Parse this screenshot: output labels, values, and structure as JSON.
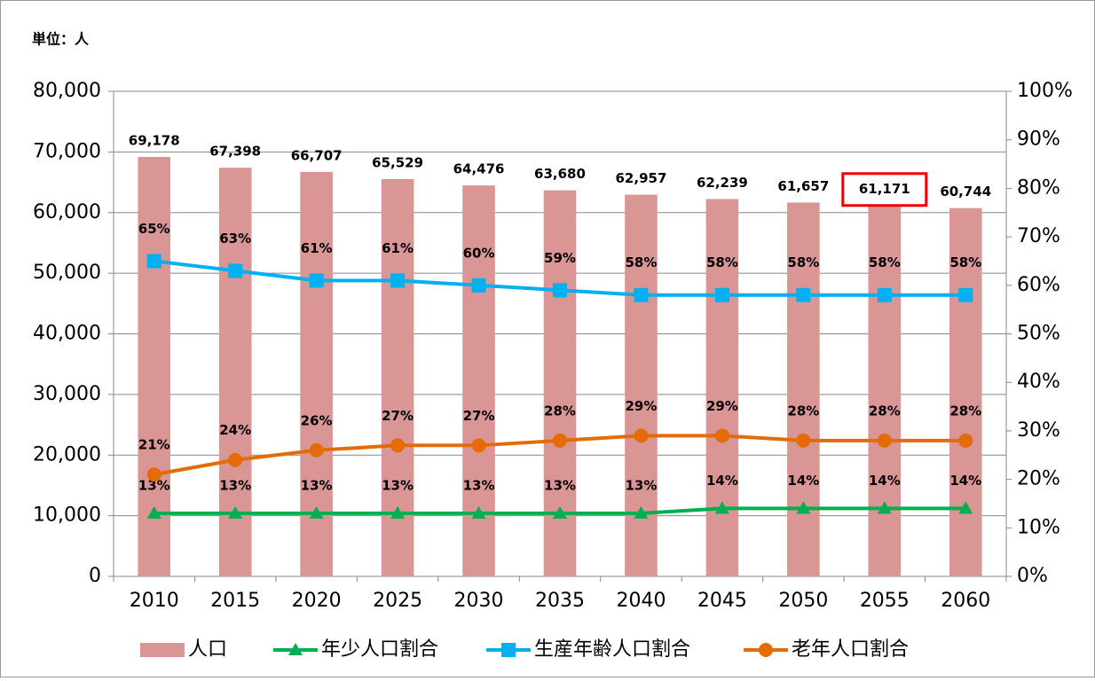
{
  "chart_data": {
    "type": "bar",
    "unit_label": "単位：人",
    "categories": [
      "2010",
      "2015",
      "2020",
      "2025",
      "2030",
      "2035",
      "2040",
      "2045",
      "2050",
      "2055",
      "2060"
    ],
    "series": [
      {
        "name": "人口",
        "type": "bar",
        "color": "#d99694",
        "values": [
          69178,
          67398,
          66707,
          65529,
          64476,
          63680,
          62957,
          62239,
          61657,
          61171,
          60744
        ],
        "value_labels": [
          "69,178",
          "67,398",
          "66,707",
          "65,529",
          "64,476",
          "63,680",
          "62,957",
          "62,239",
          "61,657",
          "61,171",
          "60,744"
        ]
      },
      {
        "name": "年少人口割合",
        "type": "line",
        "axis": "y2",
        "marker": "triangle",
        "color": "#00b050",
        "values": [
          13,
          13,
          13,
          13,
          13,
          13,
          13,
          14,
          14,
          14,
          14
        ],
        "value_labels": [
          "13%",
          "13%",
          "13%",
          "13%",
          "13%",
          "13%",
          "13%",
          "14%",
          "14%",
          "14%",
          "14%"
        ]
      },
      {
        "name": "生産年齢人口割合",
        "type": "line",
        "axis": "y2",
        "marker": "square",
        "color": "#00b0f0",
        "values": [
          65,
          63,
          61,
          61,
          60,
          59,
          58,
          58,
          58,
          58,
          58
        ],
        "value_labels": [
          "65%",
          "63%",
          "61%",
          "61%",
          "60%",
          "59%",
          "58%",
          "58%",
          "58%",
          "58%",
          "58%"
        ]
      },
      {
        "name": "老年人口割合",
        "type": "line",
        "axis": "y2",
        "marker": "circle",
        "color": "#e36c09",
        "values": [
          21,
          24,
          26,
          27,
          27,
          28,
          29,
          29,
          28,
          28,
          28
        ],
        "value_labels": [
          "21%",
          "24%",
          "26%",
          "27%",
          "27%",
          "28%",
          "29%",
          "29%",
          "28%",
          "28%",
          "28%"
        ]
      }
    ],
    "ylim": [
      0,
      80000
    ],
    "yticks": [
      0,
      {
        "value": 10000,
        "label": "10,000"
      },
      {
        "value": 20000,
        "label": "20,000"
      },
      {
        "value": 30000,
        "label": "30,000"
      },
      {
        "value": 40000,
        "label": "40,000"
      },
      {
        "value": 50000,
        "label": "50,000"
      },
      {
        "value": 60000,
        "label": "60,000"
      },
      {
        "value": 70000,
        "label": "70,000"
      },
      {
        "value": 80000,
        "label": "80,000"
      }
    ],
    "y2lim": [
      0,
      100
    ],
    "y2ticks": [
      {
        "value": 0,
        "label": "0%"
      },
      {
        "value": 10,
        "label": "10%"
      },
      {
        "value": 20,
        "label": "20%"
      },
      {
        "value": 30,
        "label": "30%"
      },
      {
        "value": 40,
        "label": "40%"
      },
      {
        "value": 50,
        "label": "50%"
      },
      {
        "value": 60,
        "label": "60%"
      },
      {
        "value": 70,
        "label": "70%"
      },
      {
        "value": 80,
        "label": "80%"
      },
      {
        "value": 90,
        "label": "90%"
      },
      {
        "value": 100,
        "label": "100%"
      }
    ],
    "grid": true,
    "legend": "bottom"
  }
}
